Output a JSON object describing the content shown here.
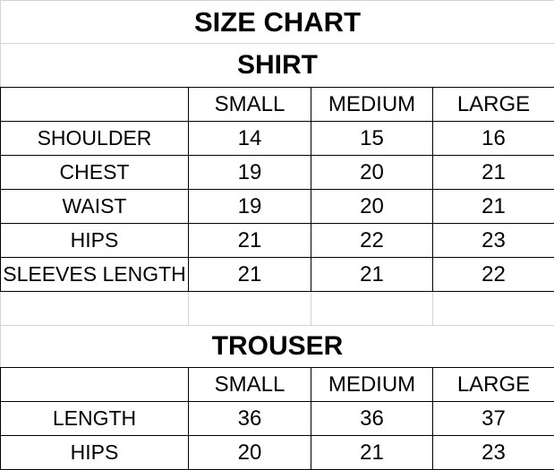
{
  "title": "SIZE CHART",
  "shirt": {
    "heading": "SHIRT",
    "columns": [
      "SMALL",
      "MEDIUM",
      "LARGE"
    ],
    "rows": [
      {
        "label": "SHOULDER",
        "values": [
          "14",
          "15",
          "16"
        ]
      },
      {
        "label": "CHEST",
        "values": [
          "19",
          "20",
          "21"
        ]
      },
      {
        "label": "WAIST",
        "values": [
          "19",
          "20",
          "21"
        ]
      },
      {
        "label": "HIPS",
        "values": [
          "21",
          "22",
          "23"
        ]
      },
      {
        "label": "SLEEVES LENGTH",
        "values": [
          "21",
          "21",
          "22"
        ]
      }
    ]
  },
  "trouser": {
    "heading": "TROUSER",
    "columns": [
      "SMALL",
      "MEDIUM",
      "LARGE"
    ],
    "rows": [
      {
        "label": "LENGTH",
        "values": [
          "36",
          "36",
          "37"
        ]
      },
      {
        "label": "HIPS",
        "values": [
          "20",
          "21",
          "23"
        ]
      }
    ]
  }
}
